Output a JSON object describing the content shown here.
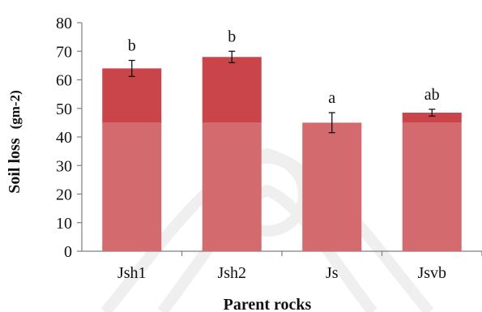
{
  "chart_data": {
    "type": "bar",
    "xlabel": "Parent rocks",
    "ylabel": "Soil loss",
    "ylabel_unit": "(gm-2)",
    "categories": [
      "Jsh1",
      "Jsh2",
      "Js",
      "Jsvb"
    ],
    "values": [
      64,
      68,
      45,
      48.5
    ],
    "errors": [
      2.8,
      2.0,
      3.5,
      1.2
    ],
    "significance_letters": [
      "b",
      "b",
      "a",
      "ab"
    ],
    "ylim": [
      0,
      80
    ],
    "yticks": [
      0,
      10,
      20,
      30,
      40,
      50,
      60,
      70,
      80
    ],
    "grid": false,
    "legend": "none",
    "colors": {
      "bar_top": "#c9454a",
      "bar_lower": "#d36a6d",
      "axis": "#808080",
      "text": "#111111"
    }
  }
}
